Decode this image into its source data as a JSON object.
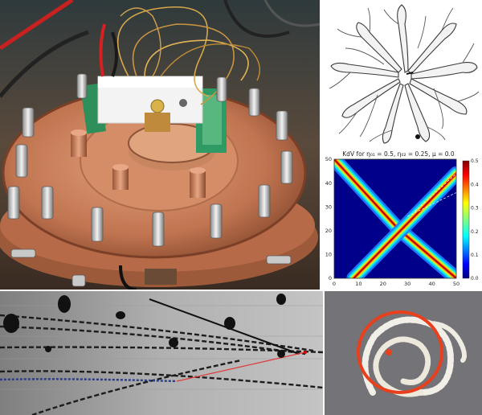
{
  "panels": {
    "photo": {
      "label": "cryostat-sample-stage-photo"
    },
    "fractal": {
      "label": "viscous-fingering-pattern"
    },
    "coil": {
      "label": "coiled-filament-photo"
    },
    "track": {
      "label": "particle-tracks-image"
    }
  },
  "chart_data": {
    "type": "heatmap",
    "title": "KdV for η₀₁ = 0.5, η₀₂ = 0.25, μ = 0.0",
    "xlabel": "",
    "ylabel": "",
    "xlim": [
      0,
      50
    ],
    "ylim": [
      0,
      50
    ],
    "x_ticks": [
      "0",
      "10",
      "20",
      "30",
      "40",
      "50"
    ],
    "y_ticks": [
      "0",
      "10",
      "20",
      "30",
      "40",
      "50"
    ],
    "colorbar": {
      "range": [
        0.0,
        0.5
      ],
      "ticks": [
        "0.5",
        "0.4",
        "0.3",
        "0.2",
        "0.1",
        "0.0"
      ],
      "colormap": "jet"
    },
    "series": [
      {
        "points": [
          [
            0,
            50
          ],
          [
            26,
            21
          ],
          [
            50,
            0
          ]
        ]
      },
      {
        "points": [
          [
            8,
            0
          ],
          [
            29,
            22
          ],
          [
            50,
            44
          ]
        ]
      }
    ]
  }
}
